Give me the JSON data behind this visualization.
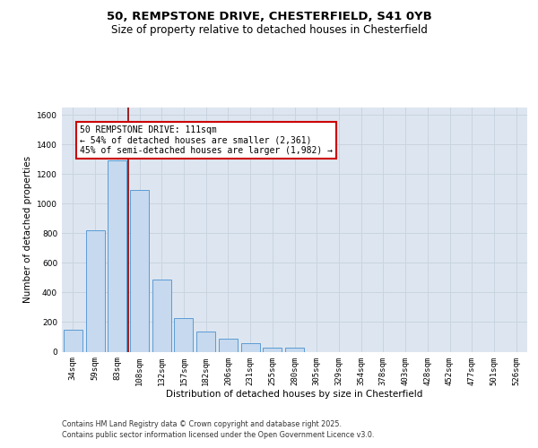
{
  "title_line1": "50, REMPSTONE DRIVE, CHESTERFIELD, S41 0YB",
  "title_line2": "Size of property relative to detached houses in Chesterfield",
  "xlabel": "Distribution of detached houses by size in Chesterfield",
  "ylabel": "Number of detached properties",
  "categories": [
    "34sqm",
    "59sqm",
    "83sqm",
    "108sqm",
    "132sqm",
    "157sqm",
    "182sqm",
    "206sqm",
    "231sqm",
    "255sqm",
    "280sqm",
    "305sqm",
    "329sqm",
    "354sqm",
    "378sqm",
    "403sqm",
    "428sqm",
    "452sqm",
    "477sqm",
    "501sqm",
    "526sqm"
  ],
  "values": [
    150,
    820,
    1290,
    1095,
    490,
    230,
    135,
    90,
    55,
    25,
    25,
    0,
    0,
    0,
    0,
    0,
    0,
    0,
    0,
    0,
    0
  ],
  "bar_color": "#c6d9ee",
  "bar_edge_color": "#5b9bd5",
  "bar_width": 0.85,
  "property_line_color": "#8b0000",
  "property_line_x": 2.5,
  "annotation_text": "50 REMPSTONE DRIVE: 111sqm\n← 54% of detached houses are smaller (2,361)\n45% of semi-detached houses are larger (1,982) →",
  "annotation_box_facecolor": "#ffffff",
  "annotation_box_edgecolor": "#cc0000",
  "ylim": [
    0,
    1650
  ],
  "yticks": [
    0,
    200,
    400,
    600,
    800,
    1000,
    1200,
    1400,
    1600
  ],
  "grid_color": "#c8d4e0",
  "axes_bg_color": "#dde6f0",
  "fig_bg_color": "#ffffff",
  "footer_line1": "Contains HM Land Registry data © Crown copyright and database right 2025.",
  "footer_line2": "Contains public sector information licensed under the Open Government Licence v3.0.",
  "title_fontsize": 9.5,
  "subtitle_fontsize": 8.5,
  "ylabel_fontsize": 7.5,
  "xlabel_fontsize": 7.5,
  "tick_fontsize": 6.5,
  "annotation_fontsize": 7.0,
  "footer_fontsize": 5.8
}
